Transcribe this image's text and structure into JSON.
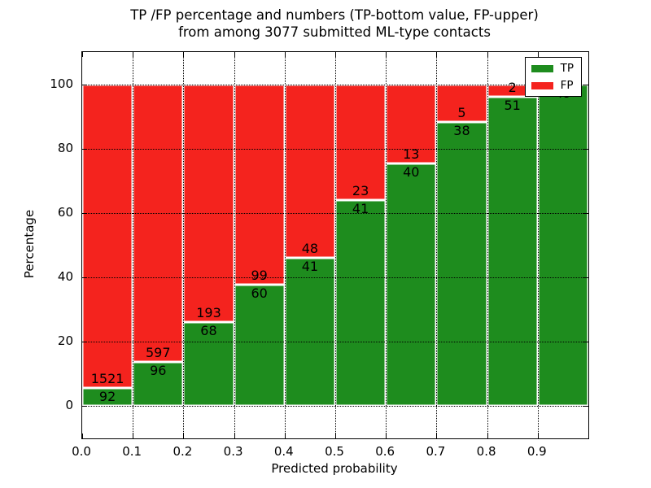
{
  "chart_data": {
    "type": "bar",
    "stacked": true,
    "normalized_to_percent": true,
    "title": "TP /FP percentage and numbers (TP-bottom value, FP-upper)",
    "subtitle": "from among 3077 submitted ML-type contacts",
    "xlabel": "Predicted probability",
    "ylabel": "Percentage",
    "categories": [
      "0.0-0.1",
      "0.1-0.2",
      "0.2-0.3",
      "0.3-0.4",
      "0.4-0.5",
      "0.5-0.6",
      "0.6-0.7",
      "0.7-0.8",
      "0.8-0.9",
      "0.9-1.0"
    ],
    "series": [
      {
        "name": "TP",
        "color": "#1e8c1e",
        "values": [
          92,
          96,
          68,
          60,
          41,
          41,
          40,
          38,
          51,
          49
        ]
      },
      {
        "name": "FP",
        "color": "#f4231e",
        "values": [
          1521,
          597,
          193,
          99,
          48,
          23,
          13,
          5,
          2,
          0
        ]
      }
    ],
    "bar_edge_color": "#ffffff",
    "x_ticks": [
      "0.0",
      "0.1",
      "0.2",
      "0.3",
      "0.4",
      "0.5",
      "0.6",
      "0.7",
      "0.8",
      "0.9"
    ],
    "y_ticks": [
      0,
      20,
      40,
      60,
      80,
      100
    ],
    "xlim": [
      0.0,
      1.0
    ],
    "ylim": [
      -10,
      110
    ],
    "grid": true,
    "grid_style": "dotted",
    "legend": {
      "entries": [
        "TP",
        "FP"
      ],
      "position": "upper right"
    }
  }
}
